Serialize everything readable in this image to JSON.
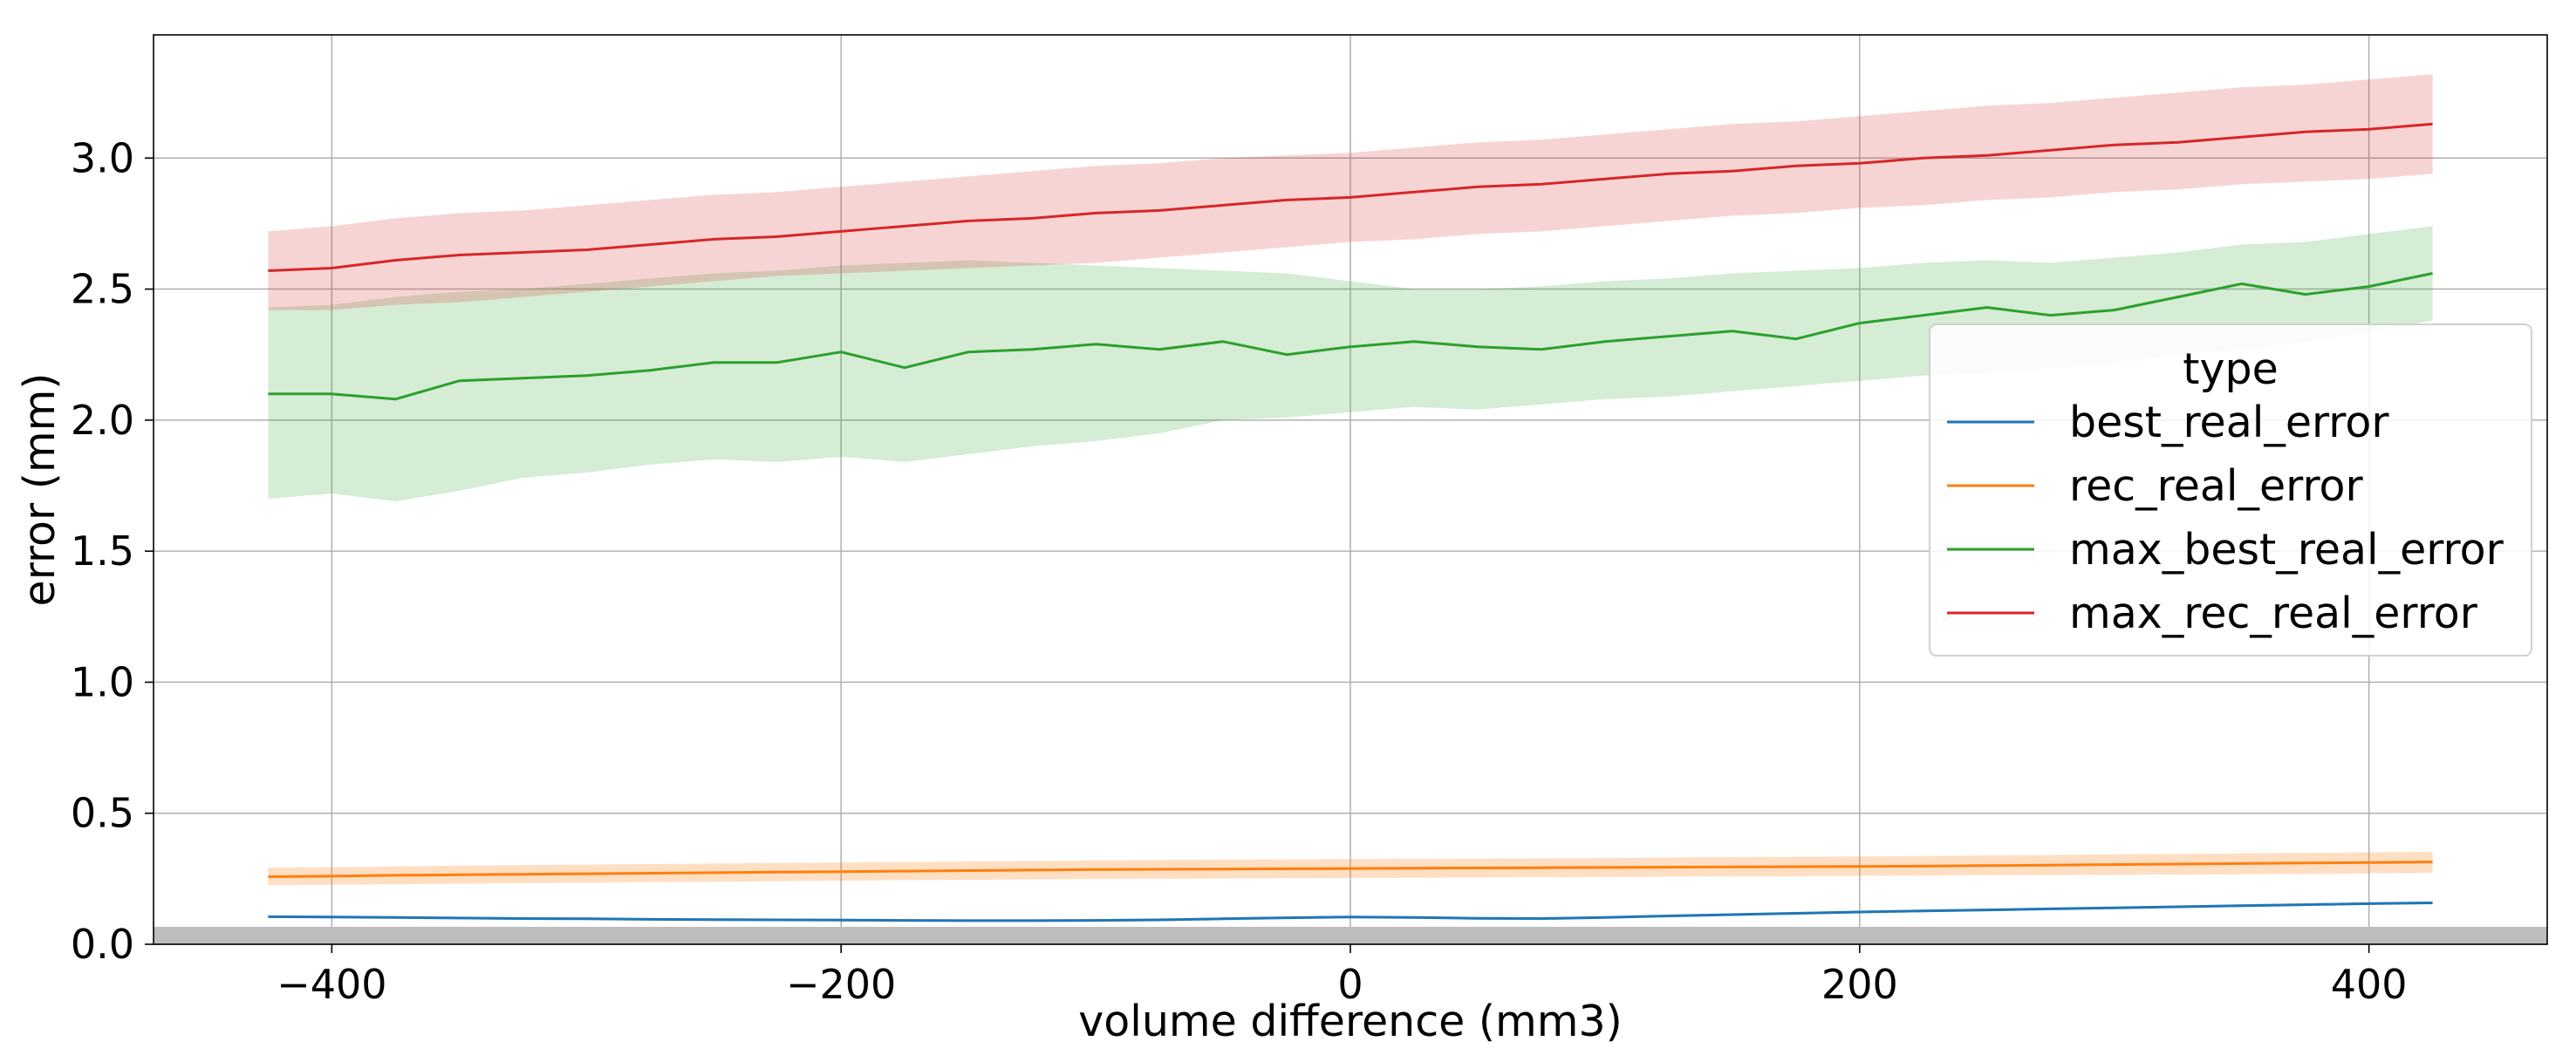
{
  "chart_data": {
    "type": "line",
    "title": "",
    "xlabel": "volume difference (mm3)",
    "ylabel": "error (mm)",
    "xlim": [
      -470,
      470
    ],
    "ylim": [
      0.0,
      3.47
    ],
    "xticks": [
      -400,
      -200,
      0,
      200,
      400
    ],
    "xtick_labels": [
      "−400",
      "−200",
      "0",
      "200",
      "400"
    ],
    "yticks": [
      0.0,
      0.5,
      1.0,
      1.5,
      2.0,
      2.5,
      3.0
    ],
    "ytick_labels": [
      "0.0",
      "0.5",
      "1.0",
      "1.5",
      "2.0",
      "2.5",
      "3.0"
    ],
    "grid": true,
    "legend": {
      "title": "type",
      "position": "right"
    },
    "x": [
      -425,
      -400,
      -375,
      -350,
      -325,
      -300,
      -275,
      -250,
      -225,
      -200,
      -175,
      -150,
      -125,
      -100,
      -75,
      -50,
      -25,
      0,
      25,
      50,
      75,
      100,
      125,
      150,
      175,
      200,
      225,
      250,
      275,
      300,
      325,
      350,
      375,
      400,
      425
    ],
    "series": [
      {
        "name": "best_real_error",
        "color": "#1f77b4",
        "band_opacity": 0.22,
        "values": [
          0.105,
          0.104,
          0.102,
          0.1,
          0.098,
          0.097,
          0.095,
          0.094,
          0.093,
          0.092,
          0.091,
          0.09,
          0.09,
          0.091,
          0.093,
          0.097,
          0.101,
          0.104,
          0.102,
          0.099,
          0.098,
          0.102,
          0.108,
          0.113,
          0.118,
          0.123,
          0.127,
          0.131,
          0.135,
          0.139,
          0.143,
          0.147,
          0.151,
          0.155,
          0.158
        ],
        "lower": [
          0.1,
          0.099,
          0.097,
          0.095,
          0.093,
          0.092,
          0.09,
          0.089,
          0.088,
          0.087,
          0.086,
          0.085,
          0.085,
          0.086,
          0.088,
          0.092,
          0.096,
          0.099,
          0.097,
          0.094,
          0.093,
          0.097,
          0.103,
          0.108,
          0.113,
          0.118,
          0.122,
          0.126,
          0.13,
          0.134,
          0.138,
          0.142,
          0.146,
          0.15,
          0.153
        ],
        "upper": [
          0.11,
          0.109,
          0.107,
          0.105,
          0.103,
          0.102,
          0.1,
          0.099,
          0.098,
          0.097,
          0.096,
          0.095,
          0.095,
          0.096,
          0.098,
          0.102,
          0.106,
          0.109,
          0.107,
          0.104,
          0.103,
          0.107,
          0.113,
          0.118,
          0.123,
          0.128,
          0.132,
          0.136,
          0.14,
          0.144,
          0.148,
          0.152,
          0.156,
          0.16,
          0.163
        ]
      },
      {
        "name": "rec_real_error",
        "color": "#ff7f0e",
        "band_opacity": 0.25,
        "values": [
          0.258,
          0.26,
          0.263,
          0.265,
          0.267,
          0.269,
          0.271,
          0.273,
          0.275,
          0.277,
          0.279,
          0.281,
          0.283,
          0.285,
          0.286,
          0.287,
          0.288,
          0.289,
          0.29,
          0.291,
          0.292,
          0.293,
          0.294,
          0.295,
          0.296,
          0.297,
          0.298,
          0.3,
          0.302,
          0.304,
          0.306,
          0.308,
          0.31,
          0.312,
          0.314
        ],
        "lower": [
          0.225,
          0.227,
          0.229,
          0.231,
          0.233,
          0.235,
          0.237,
          0.239,
          0.241,
          0.243,
          0.245,
          0.246,
          0.248,
          0.249,
          0.25,
          0.251,
          0.252,
          0.253,
          0.254,
          0.255,
          0.256,
          0.257,
          0.258,
          0.259,
          0.26,
          0.261,
          0.262,
          0.263,
          0.264,
          0.265,
          0.266,
          0.267,
          0.268,
          0.27,
          0.272
        ],
        "upper": [
          0.292,
          0.294,
          0.297,
          0.3,
          0.302,
          0.304,
          0.306,
          0.308,
          0.31,
          0.312,
          0.314,
          0.316,
          0.318,
          0.32,
          0.322,
          0.323,
          0.324,
          0.325,
          0.326,
          0.327,
          0.328,
          0.329,
          0.331,
          0.333,
          0.334,
          0.335,
          0.337,
          0.339,
          0.341,
          0.343,
          0.345,
          0.347,
          0.349,
          0.351,
          0.353
        ]
      },
      {
        "name": "max_best_real_error",
        "color": "#2ca02c",
        "band_opacity": 0.2,
        "values": [
          2.1,
          2.1,
          2.08,
          2.15,
          2.16,
          2.17,
          2.19,
          2.22,
          2.22,
          2.26,
          2.2,
          2.26,
          2.27,
          2.29,
          2.27,
          2.3,
          2.25,
          2.28,
          2.3,
          2.28,
          2.27,
          2.3,
          2.32,
          2.34,
          2.31,
          2.37,
          2.4,
          2.43,
          2.4,
          2.42,
          2.47,
          2.52,
          2.48,
          2.51,
          2.56
        ],
        "lower": [
          1.7,
          1.72,
          1.69,
          1.73,
          1.78,
          1.8,
          1.83,
          1.85,
          1.84,
          1.86,
          1.84,
          1.87,
          1.9,
          1.92,
          1.95,
          2.0,
          2.01,
          2.03,
          2.05,
          2.04,
          2.06,
          2.08,
          2.09,
          2.11,
          2.13,
          2.15,
          2.17,
          2.18,
          2.2,
          2.22,
          2.25,
          2.27,
          2.3,
          2.34,
          2.38
        ],
        "upper": [
          2.43,
          2.44,
          2.47,
          2.49,
          2.5,
          2.52,
          2.54,
          2.56,
          2.57,
          2.59,
          2.6,
          2.61,
          2.6,
          2.59,
          2.58,
          2.57,
          2.56,
          2.53,
          2.5,
          2.5,
          2.51,
          2.53,
          2.54,
          2.56,
          2.57,
          2.58,
          2.6,
          2.61,
          2.6,
          2.62,
          2.64,
          2.67,
          2.68,
          2.71,
          2.74
        ]
      },
      {
        "name": "max_rec_real_error",
        "color": "#d62728",
        "band_opacity": 0.2,
        "values": [
          2.57,
          2.58,
          2.61,
          2.63,
          2.64,
          2.65,
          2.67,
          2.69,
          2.7,
          2.72,
          2.74,
          2.76,
          2.77,
          2.79,
          2.8,
          2.82,
          2.84,
          2.85,
          2.87,
          2.89,
          2.9,
          2.92,
          2.94,
          2.95,
          2.97,
          2.98,
          3.0,
          3.01,
          3.03,
          3.05,
          3.06,
          3.08,
          3.1,
          3.11,
          3.13
        ],
        "lower": [
          2.42,
          2.42,
          2.44,
          2.45,
          2.47,
          2.49,
          2.51,
          2.53,
          2.55,
          2.56,
          2.57,
          2.58,
          2.59,
          2.6,
          2.62,
          2.64,
          2.66,
          2.68,
          2.69,
          2.71,
          2.72,
          2.74,
          2.76,
          2.78,
          2.79,
          2.81,
          2.82,
          2.84,
          2.85,
          2.87,
          2.88,
          2.9,
          2.91,
          2.92,
          2.94
        ],
        "upper": [
          2.72,
          2.74,
          2.77,
          2.79,
          2.8,
          2.82,
          2.84,
          2.86,
          2.87,
          2.89,
          2.91,
          2.93,
          2.95,
          2.97,
          2.98,
          3.0,
          3.01,
          3.02,
          3.04,
          3.06,
          3.07,
          3.09,
          3.11,
          3.13,
          3.14,
          3.16,
          3.18,
          3.2,
          3.21,
          3.23,
          3.25,
          3.27,
          3.28,
          3.3,
          3.32
        ]
      }
    ]
  }
}
